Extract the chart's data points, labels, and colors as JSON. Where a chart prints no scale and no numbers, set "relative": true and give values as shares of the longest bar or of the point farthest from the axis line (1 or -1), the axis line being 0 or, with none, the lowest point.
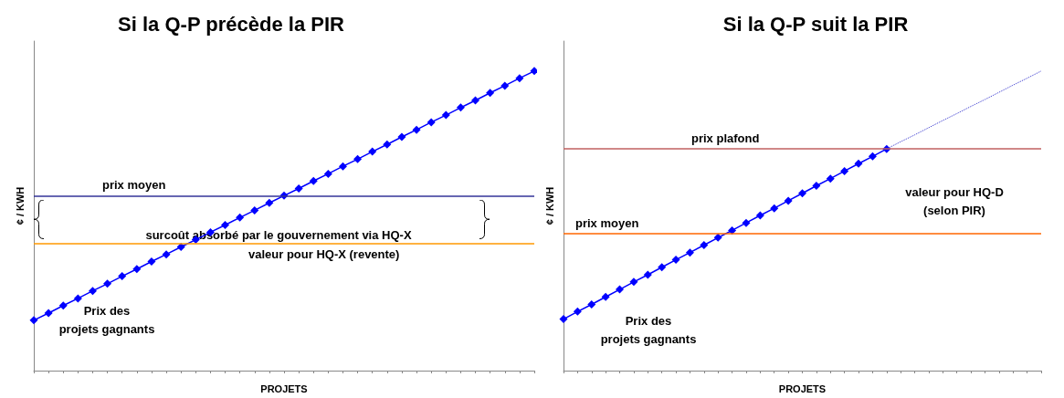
{
  "chart_data": [
    {
      "type": "line",
      "title": "Si la Q-P précède la PIR",
      "xlabel": "PROJETS",
      "ylabel": "¢ / KWH",
      "relative": true,
      "marker": "diamond",
      "line_style": "solid",
      "categories": [
        null,
        null,
        null,
        null,
        null,
        null,
        null,
        null,
        null,
        null,
        null,
        null,
        null,
        null,
        null,
        null,
        null,
        null,
        null,
        null,
        null,
        null,
        null,
        null,
        null,
        null,
        null,
        null,
        null,
        null,
        null,
        null,
        null,
        null,
        null
      ],
      "series": [
        {
          "color": "#0000ff",
          "values": [
            0.168,
            0.192,
            0.217,
            0.241,
            0.266,
            0.29,
            0.315,
            0.339,
            0.364,
            0.388,
            0.413,
            0.437,
            0.462,
            0.486,
            0.511,
            0.535,
            0.56,
            0.584,
            0.608,
            0.633,
            0.657,
            0.682,
            0.706,
            0.731,
            0.755,
            0.78,
            0.804,
            0.829,
            0.853,
            0.878,
            0.902,
            0.927,
            0.951,
            0.976,
            1
          ]
        }
      ],
      "ref_lines": [
        {
          "axis": "y",
          "value": 0.584,
          "label": "prix moyen",
          "color": "#333399"
        },
        {
          "axis": "y",
          "value": 0.424,
          "label": "valeur pour HQ-X (revente)",
          "color": "#ff9900"
        }
      ],
      "annotations": [
        "Prix des\nprojets gagnants",
        "surcoût absorbé par le gouvernement via HQ-X"
      ]
    },
    {
      "type": "line",
      "title": "Si la Q-P suit la PIR",
      "xlabel": "PROJETS",
      "ylabel": "¢ / KWH",
      "relative": true,
      "marker": "diamond",
      "line_style": "solid",
      "categories": [
        null,
        null,
        null,
        null,
        null,
        null,
        null,
        null,
        null,
        null,
        null,
        null,
        null,
        null,
        null,
        null,
        null,
        null,
        null,
        null,
        null,
        null,
        null,
        null,
        null,
        null,
        null,
        null,
        null,
        null,
        null,
        null,
        null,
        null,
        null
      ],
      "series": [
        {
          "color": "#0000ff",
          "values": [
            0.172,
            0.197,
            0.221,
            0.246,
            0.271,
            0.296,
            0.32,
            0.345,
            0.37,
            0.394,
            0.419,
            0.444,
            0.468,
            0.493,
            0.518,
            0.542,
            0.567,
            0.592,
            0.617,
            0.641,
            0.666,
            0.691,
            0.715,
            0.74,
            null,
            null,
            null,
            null,
            null,
            null,
            null,
            null,
            null,
            null,
            null
          ]
        },
        {
          "color": "#3333cc",
          "marker": "none",
          "line_style": "dotted",
          "values": [
            null,
            null,
            null,
            null,
            null,
            null,
            null,
            null,
            null,
            null,
            null,
            null,
            null,
            null,
            null,
            null,
            null,
            null,
            null,
            null,
            null,
            null,
            null,
            0.74,
            0.764,
            0.787,
            0.811,
            0.835,
            0.858,
            0.882,
            0.905,
            0.929,
            0.953,
            0.976,
            1
          ]
        }
      ],
      "ref_lines": [
        {
          "axis": "y",
          "value": 0.74,
          "label": "prix plafond",
          "color": "#c06060"
        },
        {
          "axis": "y",
          "value": 0.457,
          "label": "prix moyen",
          "color": "#ff6600"
        }
      ],
      "annotations": [
        "Prix des\nprojets gagnants",
        "valeur pour HQ-D\n(selon PIR)"
      ]
    }
  ]
}
